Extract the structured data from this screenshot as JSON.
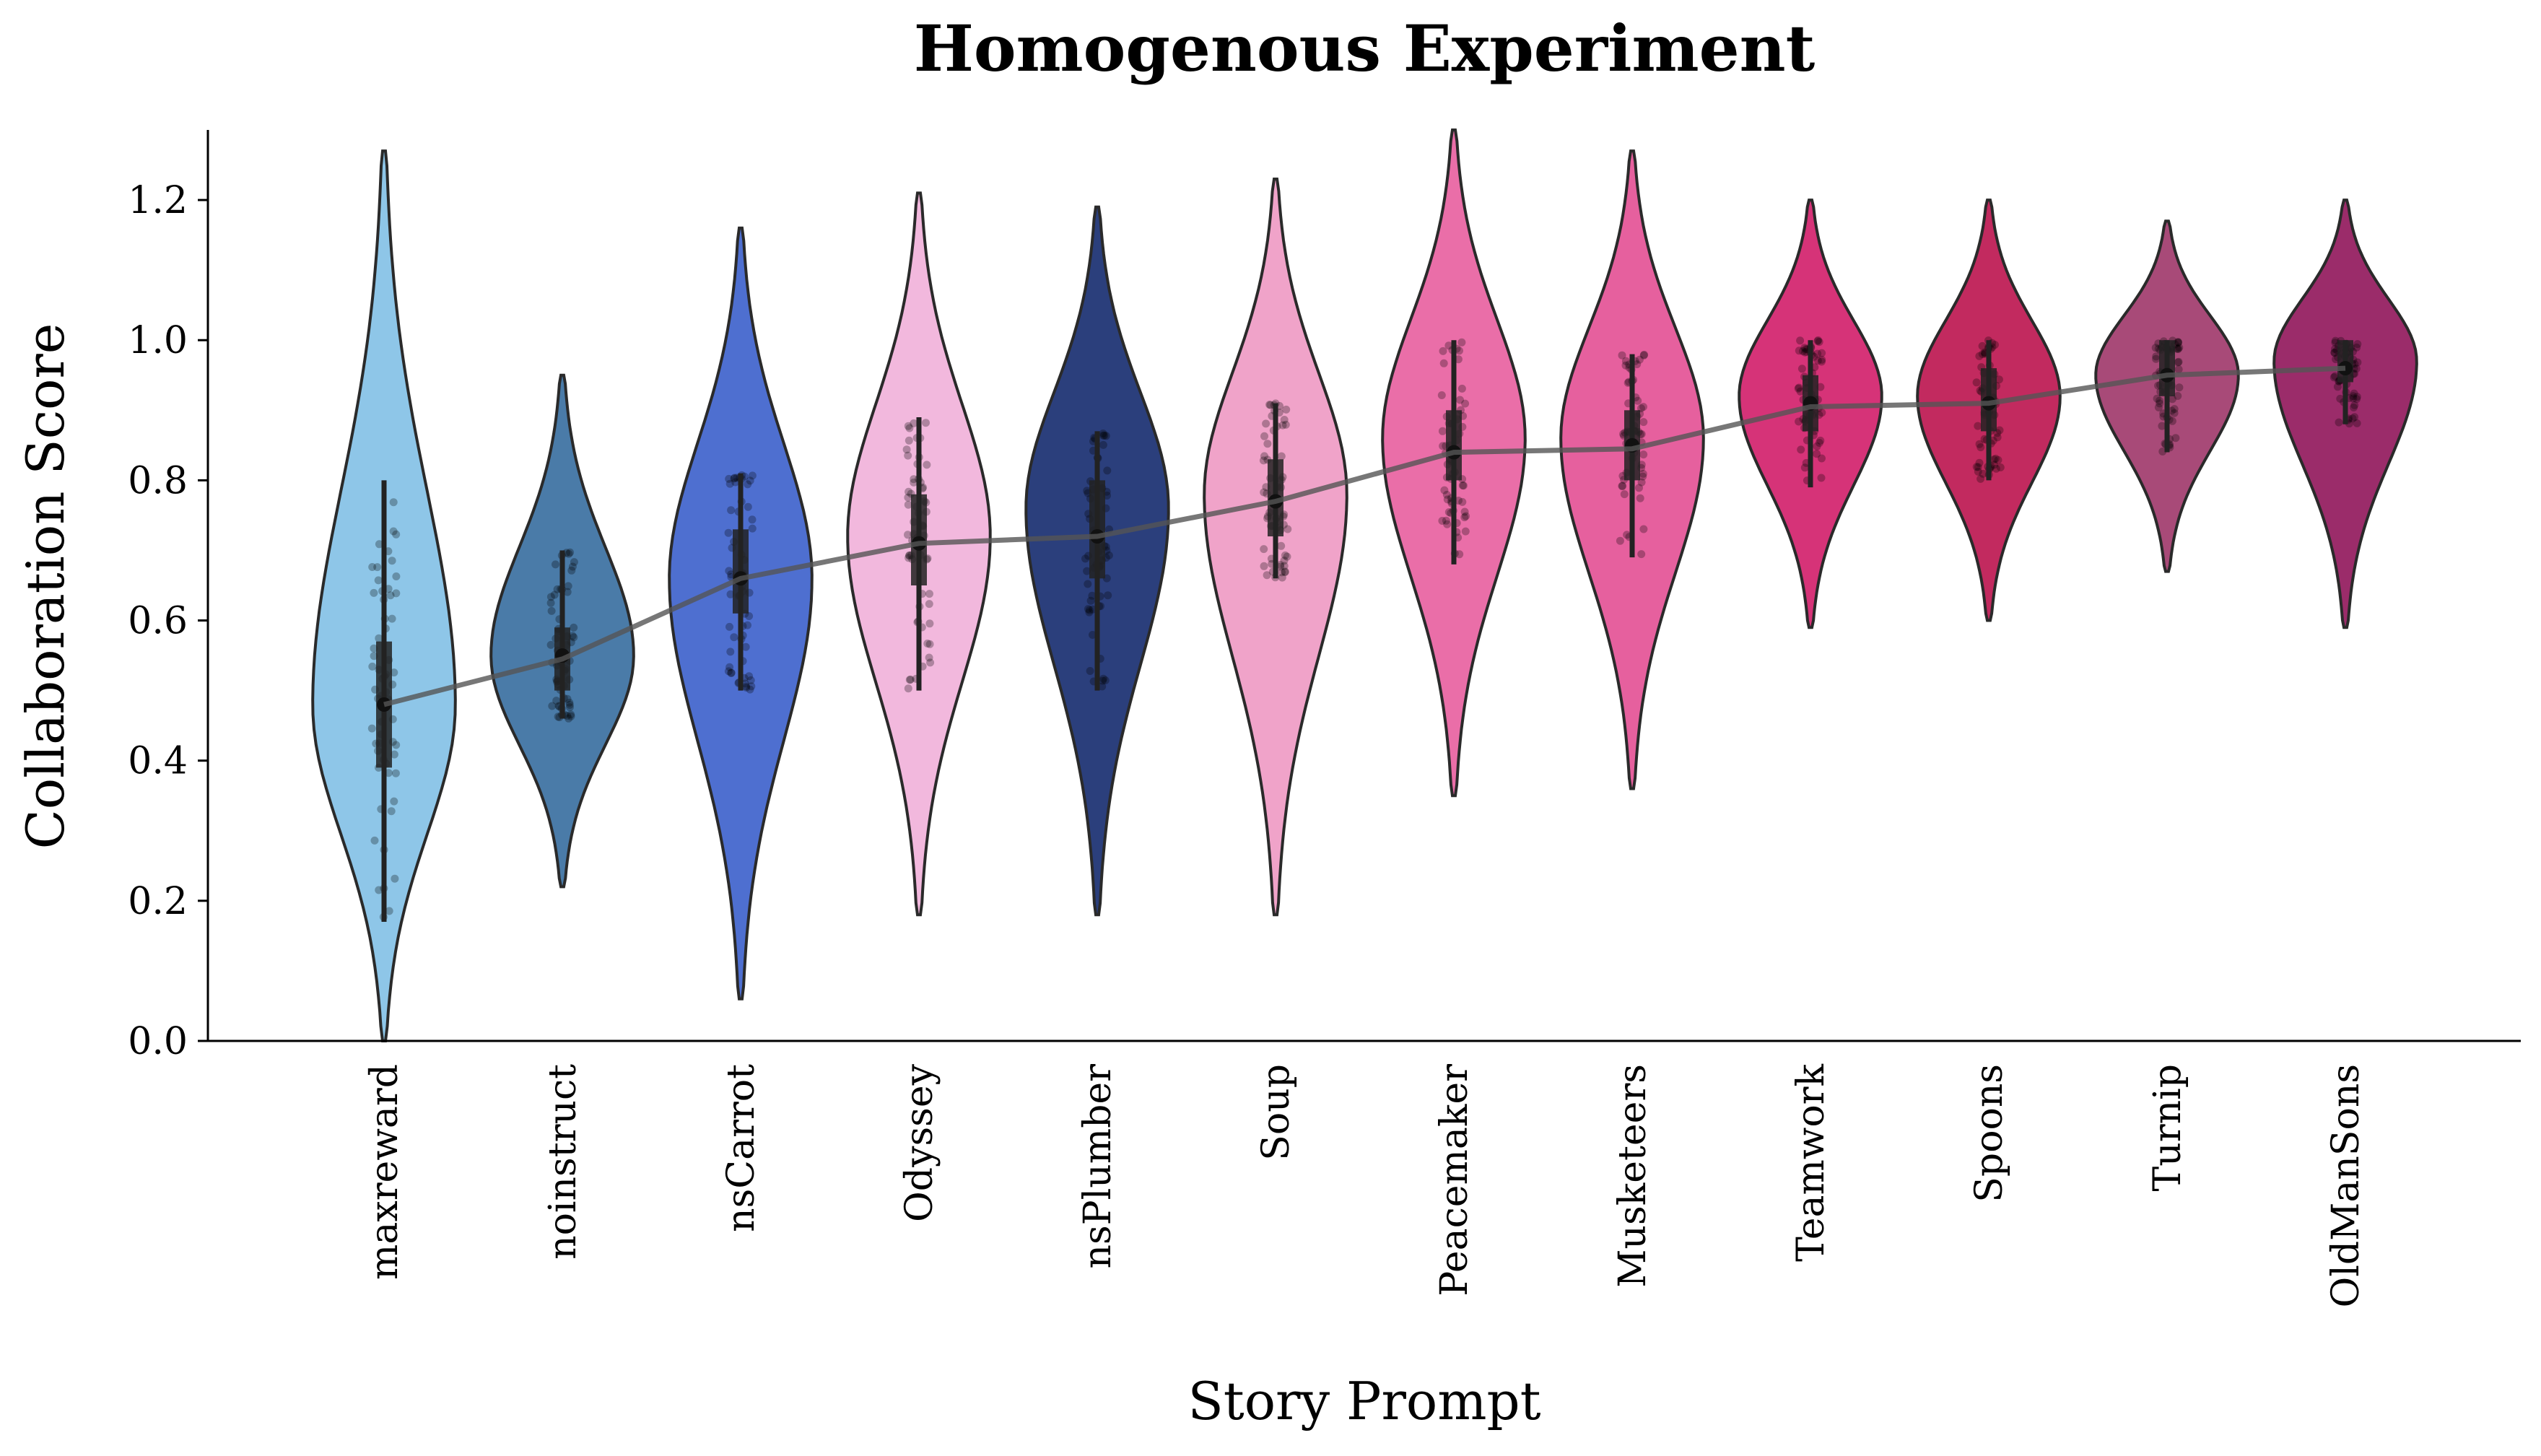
{
  "chart_data": {
    "type": "violin",
    "title": "Homogenous Experiment",
    "xlabel": "Story Prompt",
    "ylabel": "Collaboration Score",
    "ylim": [
      0.0,
      1.3
    ],
    "yticks": [
      "0.0",
      "0.2",
      "0.4",
      "0.6",
      "0.8",
      "1.0",
      "1.2"
    ],
    "grid": false,
    "categories": [
      "maxreward",
      "noinstruct",
      "nsCarrot",
      "Odyssey",
      "nsPlumber",
      "Soup",
      "Peacemaker",
      "Musketeers",
      "Teamwork",
      "Spoons",
      "Turnip",
      "OldManSons"
    ],
    "colors": [
      "#8ec6e8",
      "#4a7ba8",
      "#4e6fd0",
      "#f2b8dd",
      "#2b3f7c",
      "#f0a3c9",
      "#ea6ea8",
      "#e6609e",
      "#d63378",
      "#c22a5f",
      "#a84a78",
      "#9b2c6a"
    ],
    "violins": [
      {
        "category": "maxreward",
        "min": 0.0,
        "max": 1.27,
        "mode": 0.48,
        "max_halfwidth": 0.4,
        "whisker": [
          0.17,
          0.8
        ],
        "q1": 0.39,
        "q3": 0.57,
        "median": 0.48
      },
      {
        "category": "noinstruct",
        "min": 0.22,
        "max": 0.95,
        "mode": 0.55,
        "max_halfwidth": 0.4,
        "whisker": [
          0.46,
          0.7
        ],
        "q1": 0.5,
        "q3": 0.59,
        "median": 0.55
      },
      {
        "category": "nsCarrot",
        "min": 0.06,
        "max": 1.16,
        "mode": 0.66,
        "max_halfwidth": 0.4,
        "whisker": [
          0.5,
          0.81
        ],
        "q1": 0.61,
        "q3": 0.73,
        "median": 0.66
      },
      {
        "category": "Odyssey",
        "min": 0.18,
        "max": 1.21,
        "mode": 0.72,
        "max_halfwidth": 0.4,
        "whisker": [
          0.5,
          0.89
        ],
        "q1": 0.65,
        "q3": 0.78,
        "median": 0.71
      },
      {
        "category": "nsPlumber",
        "min": 0.18,
        "max": 1.19,
        "mode": 0.76,
        "max_halfwidth": 0.4,
        "whisker": [
          0.5,
          0.87
        ],
        "q1": 0.66,
        "q3": 0.8,
        "median": 0.72
      },
      {
        "category": "Soup",
        "min": 0.18,
        "max": 1.23,
        "mode": 0.78,
        "max_halfwidth": 0.4,
        "whisker": [
          0.66,
          0.91
        ],
        "q1": 0.72,
        "q3": 0.83,
        "median": 0.77
      },
      {
        "category": "Peacemaker",
        "min": 0.35,
        "max": 1.3,
        "mode": 0.86,
        "max_halfwidth": 0.4,
        "whisker": [
          0.68,
          1.0
        ],
        "q1": 0.8,
        "q3": 0.9,
        "median": 0.84
      },
      {
        "category": "Musketeers",
        "min": 0.36,
        "max": 1.27,
        "mode": 0.86,
        "max_halfwidth": 0.4,
        "whisker": [
          0.69,
          0.98
        ],
        "q1": 0.8,
        "q3": 0.9,
        "median": 0.85
      },
      {
        "category": "Teamwork",
        "min": 0.59,
        "max": 1.2,
        "mode": 0.92,
        "max_halfwidth": 0.4,
        "whisker": [
          0.79,
          1.0
        ],
        "q1": 0.87,
        "q3": 0.95,
        "median": 0.91
      },
      {
        "category": "Spoons",
        "min": 0.6,
        "max": 1.2,
        "mode": 0.92,
        "max_halfwidth": 0.4,
        "whisker": [
          0.8,
          1.0
        ],
        "q1": 0.87,
        "q3": 0.96,
        "median": 0.91
      },
      {
        "category": "Turnip",
        "min": 0.67,
        "max": 1.17,
        "mode": 0.95,
        "max_halfwidth": 0.4,
        "whisker": [
          0.84,
          1.0
        ],
        "q1": 0.92,
        "q3": 1.0,
        "median": 0.95
      },
      {
        "category": "OldManSons",
        "min": 0.59,
        "max": 1.2,
        "mode": 0.97,
        "max_halfwidth": 0.4,
        "whisker": [
          0.88,
          1.0
        ],
        "q1": 0.94,
        "q3": 1.0,
        "median": 0.96
      }
    ],
    "trend_line": {
      "values": [
        0.48,
        0.545,
        0.66,
        0.71,
        0.72,
        0.77,
        0.84,
        0.845,
        0.905,
        0.91,
        0.95,
        0.96
      ]
    }
  }
}
